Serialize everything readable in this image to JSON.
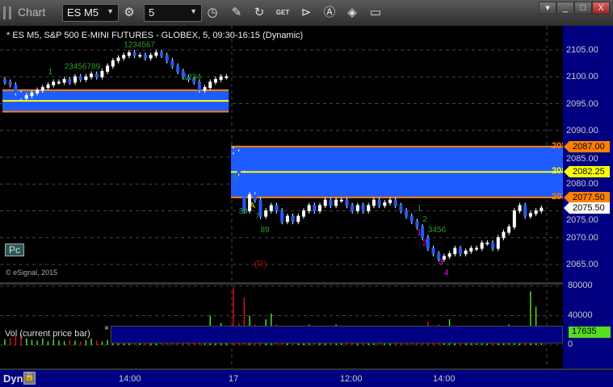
{
  "window": {
    "title": "Chart",
    "symbol": "ES M5",
    "interval": "5",
    "controls": [
      "minimize",
      "maximize",
      "close"
    ]
  },
  "toolbar": {
    "icons": [
      "gear-icon",
      "clock-icon",
      "pencil-icon",
      "refresh-icon",
      "get-icon",
      "play-icon",
      "a-icon",
      "link-icon",
      "comment-icon"
    ]
  },
  "chart": {
    "header": "* ES M5, S&P 500 E-MINI FUTURES - GLOBEX, 5, 09:30-16:15 (Dynamic)",
    "copyright": "© eSignal, 2015",
    "pc_label": "Pc",
    "r_label": "(R)"
  },
  "chart_data": {
    "type": "candlestick",
    "price_axis": {
      "ticks": [
        "2105.00",
        "2100.00",
        "2095.00",
        "2090.00",
        "2085.00",
        "2080.00",
        "2075.00",
        "2070.00",
        "2065.00"
      ],
      "range": [
        2063,
        2110
      ]
    },
    "time_axis": {
      "ticks": [
        "14:00",
        "17",
        "12:00",
        "14:00"
      ]
    },
    "price_tags": [
      {
        "value": "2087.00",
        "color": "#ff8000",
        "left": "208"
      },
      {
        "value": "2082.25",
        "color": "#ffff00",
        "left": "208"
      },
      {
        "value": "2077.50",
        "color": "#ff8000",
        "left": "207"
      },
      {
        "value": "2075.50",
        "color": "#ffffff",
        "left": ""
      }
    ],
    "zones": [
      {
        "from_bar": 0,
        "to_bar": 41,
        "top": 2097.5,
        "bottom": 2093.5,
        "mid": 2095.5
      },
      {
        "from_bar": 42,
        "to_bar": 99,
        "top": 2087,
        "bottom": 2077.5,
        "mid": 2082.25
      }
    ],
    "session1_closes": [
      2099,
      2098.5,
      2097,
      2096,
      2096.5,
      2097,
      2097.5,
      2098,
      2098.5,
      2099,
      2099,
      2099.5,
      2099,
      2100,
      2099.5,
      2100,
      2100.5,
      2100,
      2101,
      2102,
      2103,
      2103.5,
      2104,
      2104.5,
      2104,
      2104,
      2103.5,
      2104,
      2104.5,
      2104,
      2103,
      2102,
      2101,
      2100,
      2099.5,
      2099,
      2097.5,
      2098,
      2099,
      2099.5,
      2100,
      2100
    ],
    "session2_closes": [
      2086,
      2082,
      2075,
      2078,
      2077,
      2074,
      2075,
      2076,
      2075,
      2073,
      2074,
      2073,
      2074,
      2075,
      2076,
      2075,
      2076,
      2077,
      2076,
      2077,
      2077,
      2076,
      2075,
      2076,
      2075,
      2076,
      2077,
      2076,
      2076.5,
      2077,
      2076,
      2075,
      2074,
      2073,
      2072,
      2070,
      2068,
      2067,
      2066,
      2066.5,
      2067,
      2068,
      2067,
      2067.5,
      2068,
      2068,
      2069,
      2069,
      2068,
      2070,
      2071,
      2072,
      2075,
      2076,
      2074,
      2074.5,
      2075,
      2075.5
    ],
    "volume_axis": {
      "ticks": [
        "80000",
        "40000",
        "0"
      ],
      "max": 80000,
      "current": "17635"
    },
    "volumes": [
      8000,
      10000,
      12000,
      15000,
      9000,
      7000,
      6000,
      9000,
      5000,
      8000,
      6000,
      5000,
      7000,
      6000,
      5000,
      7000,
      9000,
      6000,
      5000,
      7000,
      8000,
      20000,
      9000,
      8000,
      7000,
      6000,
      8000,
      7000,
      9000,
      6000,
      7000,
      10000,
      12000,
      15000,
      11000,
      18000,
      25000,
      14000,
      40000,
      22000,
      30000,
      20000,
      78000,
      30000,
      65000,
      40000,
      28000,
      14000,
      35000,
      43000,
      28000,
      24000,
      20000,
      18000,
      19000,
      24000,
      28000,
      22000,
      18000,
      16000,
      20000,
      28000,
      12000,
      10000,
      12000,
      9000,
      8000,
      10000,
      12000,
      9000,
      8000,
      10000,
      9000,
      8000,
      10000,
      14000,
      18000,
      12000,
      32000,
      12000,
      28000,
      20000,
      35000,
      15000,
      14000,
      16000,
      12000,
      10000,
      9000,
      14000,
      20000,
      22000,
      12000,
      28000,
      22000,
      24000,
      20000,
      73000,
      52000,
      19000
    ],
    "indicator_label": "Vol (current price bar)",
    "annotations": [
      {
        "text": "1",
        "bar": 8,
        "price": 2100.5,
        "color": "#2e9a2e"
      },
      {
        "text": "23456789",
        "bar": 11,
        "price": 2101.5,
        "color": "#2e9a2e"
      },
      {
        "text": "1234567",
        "bar": 22,
        "price": 2105.5,
        "color": "#2e9a2e"
      },
      {
        "text": "1234",
        "bar": 33,
        "price": 2099.5,
        "color": "#2e9a2e"
      },
      {
        "text": "1",
        "bar": 42,
        "price": 2081,
        "color": "#2e9a2e"
      },
      {
        "text": "A",
        "bar": 45,
        "price": 2075.5,
        "color": "#e0e000"
      },
      {
        "text": "34",
        "bar": 43,
        "price": 2074.5,
        "color": "#2e9a2e"
      },
      {
        "text": "7",
        "bar": 46,
        "price": 2073.5,
        "color": "#2e9a2e"
      },
      {
        "text": "89",
        "bar": 47,
        "price": 2071,
        "color": "#2e9a2e"
      },
      {
        "text": "1",
        "bar": 76,
        "price": 2075,
        "color": "#2e9a2e"
      },
      {
        "text": "2",
        "bar": 77,
        "price": 2073,
        "color": "#2e9a2e"
      },
      {
        "text": "3456",
        "bar": 78,
        "price": 2071,
        "color": "#2e9a2e"
      },
      {
        "text": "1",
        "bar": 76,
        "price": 2070.5,
        "color": "#ff00ff"
      },
      {
        "text": "2",
        "bar": 77,
        "price": 2068.5,
        "color": "#ff00ff"
      },
      {
        "text": "3",
        "bar": 80,
        "price": 2065,
        "color": "#ff00ff"
      },
      {
        "text": "4",
        "bar": 81,
        "price": 2063,
        "color": "#ff00ff"
      }
    ]
  },
  "bottom": {
    "dyn_label": "Dyn"
  }
}
